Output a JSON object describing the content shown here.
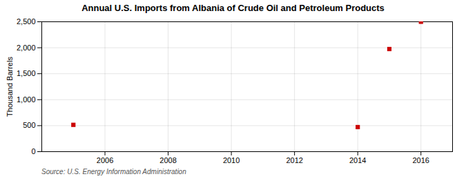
{
  "chart_data": {
    "type": "scatter",
    "title": "Annual U.S. Imports from Albania of Crude Oil and Petroleum Products",
    "ylabel": "Thousand Barrels",
    "source": "Source: U.S. Energy Information Administration",
    "x": [
      2005,
      2014,
      2015,
      2016
    ],
    "values": [
      516,
      473,
      1975,
      2500
    ],
    "color": "#CC0000",
    "marker": "square",
    "xlim": [
      2004.0,
      2017.0
    ],
    "xticks": [
      2006,
      2008,
      2010,
      2012,
      2014,
      2016
    ],
    "ylim": [
      0,
      2500
    ],
    "yticks": [
      0,
      500,
      {
        "value": 1000,
        "label": "1,000"
      },
      {
        "value": 1500,
        "label": "1,500"
      },
      {
        "value": 2000,
        "label": "2,000"
      },
      {
        "value": 2500,
        "label": "2,500"
      }
    ],
    "grid": true
  }
}
